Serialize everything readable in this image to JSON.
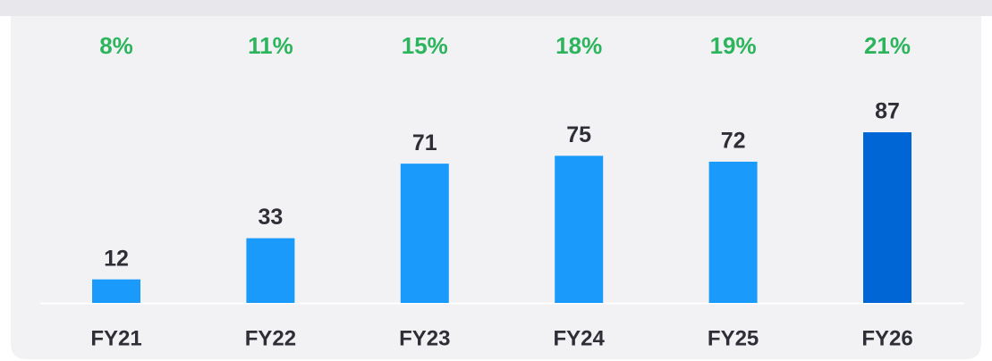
{
  "chart_data": {
    "type": "bar",
    "categories": [
      "FY21",
      "FY22",
      "FY23",
      "FY24",
      "FY25",
      "FY26"
    ],
    "values": [
      12,
      33,
      71,
      75,
      72,
      87
    ],
    "colors": [
      "#1a9bfc",
      "#1a9bfc",
      "#1a9bfc",
      "#1a9bfc",
      "#1a9bfc",
      "#0066d6"
    ],
    "percentages": {
      "values": [
        8,
        11,
        15,
        18,
        19,
        21
      ],
      "value_labels": [
        "8%",
        "11%",
        "15%",
        "18%",
        "19%",
        "21%"
      ],
      "color": "#2db55d"
    }
  }
}
